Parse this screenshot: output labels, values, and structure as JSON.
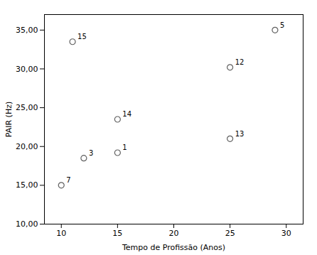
{
  "chart_data": {
    "type": "scatter",
    "xlabel": "Tempo de Profissão (Anos)",
    "ylabel": "PAIR (Hz)",
    "x": [
      10,
      11,
      12,
      15,
      15,
      25,
      25,
      29
    ],
    "values": [
      15.0,
      33.5,
      18.5,
      19.2,
      23.5,
      30.2,
      21.0,
      35.0
    ],
    "annotations": [
      {
        "text": "7",
        "x": 10,
        "y": 15.0
      },
      {
        "text": "15",
        "x": 11,
        "y": 33.5
      },
      {
        "text": "3",
        "x": 12,
        "y": 18.5
      },
      {
        "text": "1",
        "x": 15,
        "y": 19.2
      },
      {
        "text": "14",
        "x": 15,
        "y": 23.5
      },
      {
        "text": "12",
        "x": 25,
        "y": 30.2
      },
      {
        "text": "13",
        "x": 25,
        "y": 21.0
      },
      {
        "text": "5",
        "x": 29,
        "y": 35.0
      }
    ],
    "color": "#606060",
    "marker": "circle",
    "grid": false,
    "xlim": [
      8.5,
      31.5
    ],
    "ylim": [
      10.0,
      37.0
    ],
    "xticks": [
      10,
      15,
      20,
      25,
      30
    ],
    "yticks": [
      {
        "value": 10.0,
        "label": "10,00"
      },
      {
        "value": 15.0,
        "label": "15,00"
      },
      {
        "value": 20.0,
        "label": "20,00"
      },
      {
        "value": 25.0,
        "label": "25,00"
      },
      {
        "value": 30.0,
        "label": "30,00"
      },
      {
        "value": 35.0,
        "label": "35,00"
      }
    ]
  }
}
